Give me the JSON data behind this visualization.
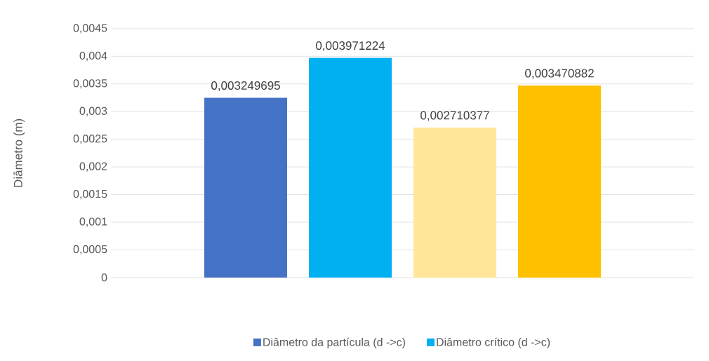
{
  "chart_data": {
    "type": "bar",
    "ylabel": "Diâmetro (m)",
    "categories": [
      null
    ],
    "series": [
      {
        "name": "Diâmetro da partícula (d ->c)",
        "color": "#4472c4",
        "values": [
          0.003249695
        ],
        "value_labels": [
          "0,003249695"
        ]
      },
      {
        "name": "Diâmetro crítico (d ->c)",
        "color": "#00b0f0",
        "values": [
          0.003971224
        ],
        "value_labels": [
          "0,003971224"
        ]
      },
      {
        "color": "#ffe699",
        "values": [
          0.002710377
        ],
        "value_labels": [
          "0,002710377"
        ]
      },
      {
        "color": "#ffc000",
        "values": [
          0.003470882
        ],
        "value_labels": [
          "0,003470882"
        ]
      }
    ],
    "ylim": [
      0,
      0.0045
    ],
    "yticks": [
      {
        "value": 0,
        "label": "0"
      },
      {
        "value": 0.0005,
        "label": "0,0005"
      },
      {
        "value": 0.001,
        "label": "0,001"
      },
      {
        "value": 0.0015,
        "label": "0,0015"
      },
      {
        "value": 0.002,
        "label": "0,002"
      },
      {
        "value": 0.0025,
        "label": "0,0025"
      },
      {
        "value": 0.003,
        "label": "0,003"
      },
      {
        "value": 0.0035,
        "label": "0,0035"
      },
      {
        "value": 0.004,
        "label": "0,004"
      },
      {
        "value": 0.0045,
        "label": "0,0045"
      }
    ],
    "grid": "y",
    "legend": "bottom"
  }
}
